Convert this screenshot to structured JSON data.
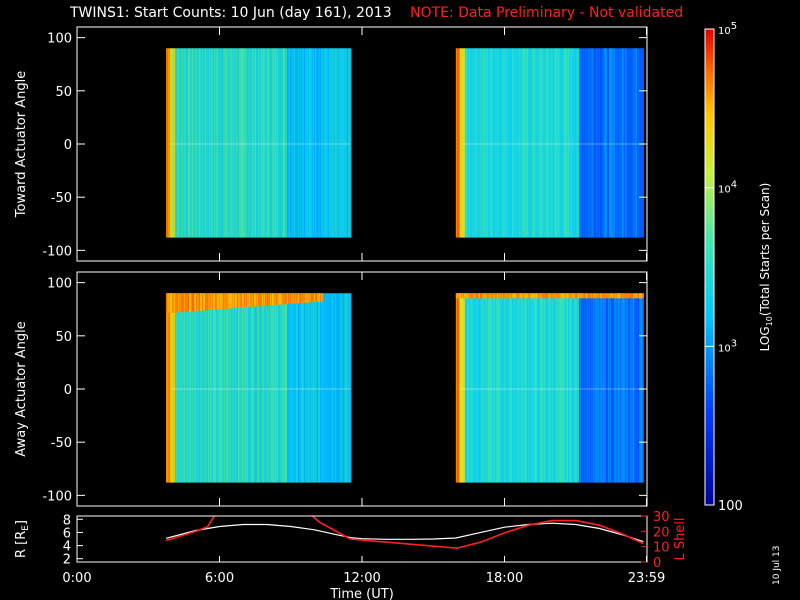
{
  "title": {
    "main": "TWINS1: Start Counts: 10 Jun (day 161), 2013",
    "note": "NOTE: Data Preliminary - Not validated"
  },
  "side_stamp": "10 Jul 13",
  "colors": {
    "background": "#000000",
    "axes": "#ffffff",
    "note": "#ff2020",
    "lshell": "#ff2020",
    "radius": "#ffffff"
  },
  "chart_data": [
    {
      "type": "heatmap",
      "panel": "top",
      "ylabel": "Toward Actuator Angle",
      "ylim": [
        -110,
        110
      ],
      "yticks": [
        100,
        50,
        0,
        -50,
        -100
      ],
      "xlim_hours": [
        0,
        24
      ],
      "data_blocks_hours": [
        [
          3.75,
          11.55
        ],
        [
          15.95,
          23.85
        ]
      ],
      "angle_range": [
        -88,
        90
      ]
    },
    {
      "type": "heatmap",
      "panel": "middle",
      "ylabel": "Away Actuator Angle",
      "ylim": [
        -110,
        110
      ],
      "yticks": [
        100,
        50,
        0,
        -50,
        -100
      ],
      "xlim_hours": [
        0,
        24
      ],
      "data_blocks_hours": [
        [
          3.75,
          11.55
        ],
        [
          15.95,
          23.85
        ]
      ],
      "angle_range": [
        -88,
        90
      ]
    },
    {
      "type": "line",
      "panel": "bottom",
      "ylabel_left": "R [R",
      "ylabel_left_sub": "E",
      "ylabel_left_close": "]",
      "ylabel_right": "L Shell",
      "ylim_left": [
        1.5,
        8.5
      ],
      "yticks_left": [
        8,
        6,
        4,
        2
      ],
      "ylim_right": [
        0,
        30
      ],
      "yticks_right": [
        30,
        20,
        10,
        0
      ],
      "xlabel": "Time (UT)",
      "xticks": [
        "0:00",
        "6:00",
        "12:00",
        "18:00",
        "23:59"
      ],
      "xtick_hours": [
        0,
        6,
        12,
        18,
        23.98
      ],
      "series": [
        {
          "axis": "left",
          "x": [
            3.75,
            5,
            6,
            7,
            8,
            9,
            10,
            11,
            11.55,
            12,
            13,
            14,
            15,
            15.95,
            17,
            18,
            19,
            20,
            21,
            22,
            23,
            23.85
          ],
          "y": [
            5.1,
            6.3,
            6.9,
            7.2,
            7.2,
            6.9,
            6.4,
            5.6,
            5.2,
            5.05,
            4.95,
            4.95,
            5.0,
            5.15,
            6.0,
            6.8,
            7.2,
            7.4,
            7.2,
            6.6,
            5.6,
            4.6
          ]
        },
        {
          "axis": "right",
          "x": [
            3.75,
            5,
            5.5,
            5.9,
            9.7,
            10.2,
            11.5,
            13,
            16,
            17,
            18,
            19,
            20,
            21,
            22,
            23,
            23.85
          ],
          "y": [
            14,
            20,
            23,
            33,
            33,
            26,
            15,
            13,
            9,
            13,
            19,
            24,
            27,
            27,
            24,
            18,
            12
          ]
        }
      ]
    }
  ],
  "colorbar": {
    "type": "colorbar",
    "label_pre": "LOG",
    "label_sub": "10",
    "label_post": "(Total Starts per Scan)",
    "tick_labels": [
      {
        "text": "10",
        "sup": "5",
        "value": 100000
      },
      {
        "text": "10",
        "sup": "4",
        "value": 10000
      },
      {
        "text": "10",
        "sup": "3",
        "value": 1000
      },
      {
        "text": "100",
        "sup": "",
        "value": 100
      }
    ],
    "range": [
      100,
      100000
    ]
  }
}
